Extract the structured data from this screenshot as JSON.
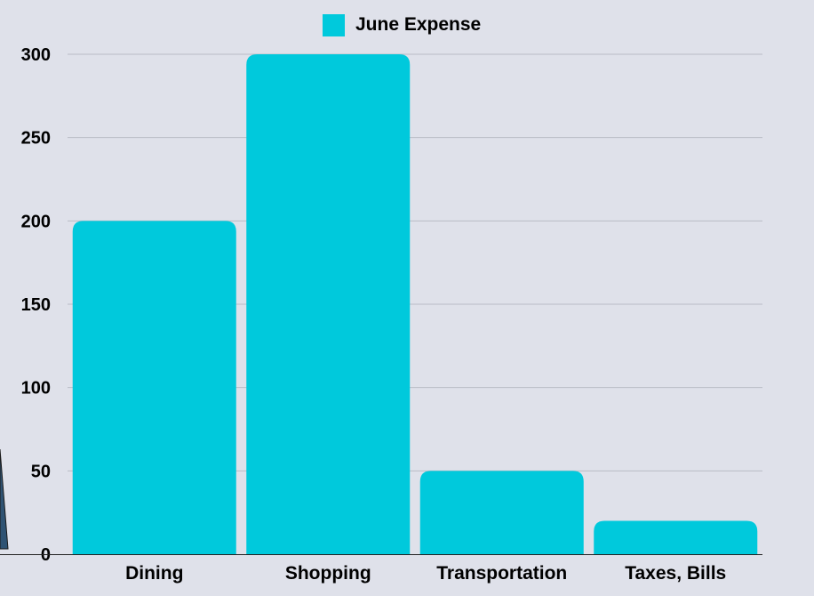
{
  "chart_data": {
    "type": "bar",
    "categories": [
      "Dining",
      "Shopping",
      "Transportation",
      "Taxes, Bills"
    ],
    "series": [
      {
        "name": "June Expense",
        "values": [
          200,
          300,
          50,
          20
        ],
        "color": "#00c9dc"
      }
    ],
    "y_ticks": [
      "0",
      "50",
      "100",
      "150",
      "200",
      "250",
      "300"
    ],
    "ylim": [
      0,
      300
    ],
    "grid": true,
    "legend": "top-center",
    "colors": {
      "background": "#dfe1ea",
      "grid": "#b9bcc6",
      "bar": "#00c9dc",
      "axis": "#222222",
      "edge_shape": "#2f5373"
    }
  }
}
